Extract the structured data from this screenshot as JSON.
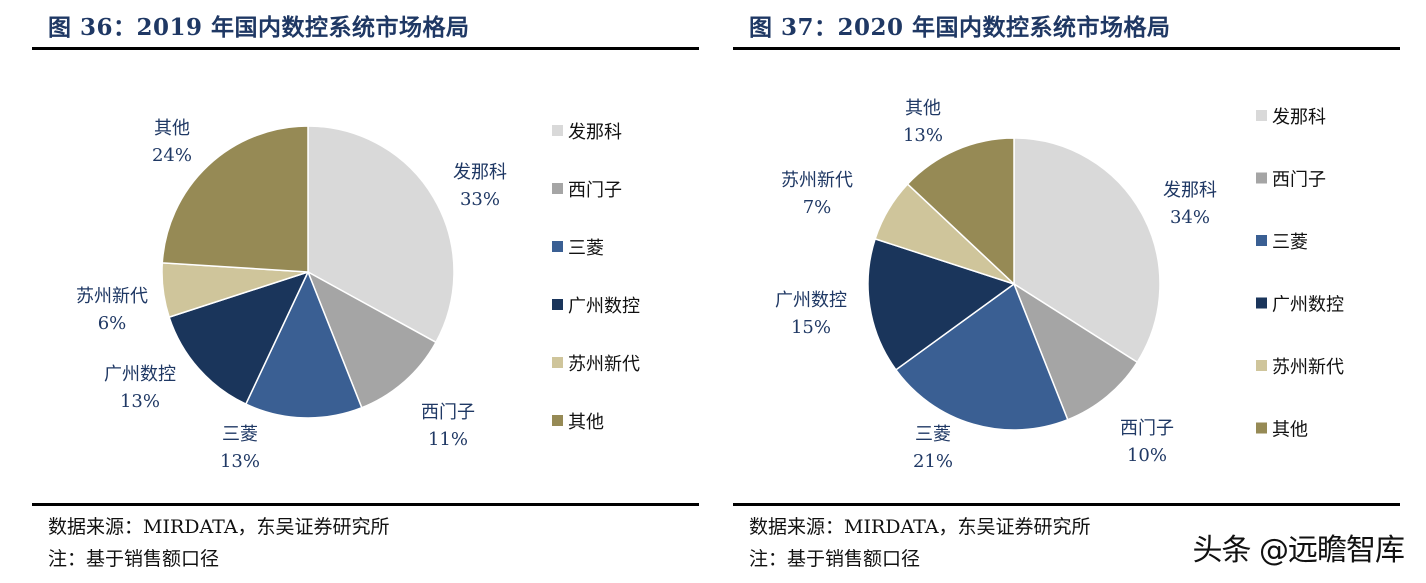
{
  "colors": {
    "title": "#1f3864",
    "label": "#1f3864",
    "series": [
      "#d9d9d9",
      "#a5a5a5",
      "#3a5f93",
      "#1a355b",
      "#cfc59b",
      "#968a55"
    ]
  },
  "chart_data": [
    {
      "type": "pie",
      "title": "图 36：2019 年国内数控系统市场格局",
      "categories": [
        "发那科",
        "西门子",
        "三菱",
        "广州数控",
        "苏州新代",
        "其他"
      ],
      "values": [
        33,
        11,
        13,
        13,
        6,
        24
      ],
      "value_labels": [
        "33%",
        "11%",
        "13%",
        "13%",
        "6%",
        "24%"
      ],
      "legend": [
        "发那科",
        "西门子",
        "三菱",
        "广州数控",
        "苏州新代",
        "其他"
      ],
      "legend_position": "right",
      "start_angle": "12 o'clock",
      "direction": "clockwise"
    },
    {
      "type": "pie",
      "title": "图 37：2020 年国内数控系统市场格局",
      "categories": [
        "发那科",
        "西门子",
        "三菱",
        "广州数控",
        "苏州新代",
        "其他"
      ],
      "values": [
        34,
        10,
        21,
        15,
        7,
        13
      ],
      "value_labels": [
        "34%",
        "10%",
        "21%",
        "15%",
        "7%",
        "13%"
      ],
      "legend": [
        "发那科",
        "西门子",
        "三菱",
        "广州数控",
        "苏州新代",
        "其他"
      ],
      "legend_position": "right",
      "start_angle": "12 o'clock",
      "direction": "clockwise"
    }
  ],
  "footer": {
    "left": {
      "source": "数据来源：MIRDATA，东吴证券研究所",
      "note": "注：基于销售额口径"
    },
    "right": {
      "source": "数据来源：MIRDATA，东吴证券研究所",
      "note": "注：基于销售额口径"
    }
  },
  "watermark": "头条 @远瞻智库"
}
